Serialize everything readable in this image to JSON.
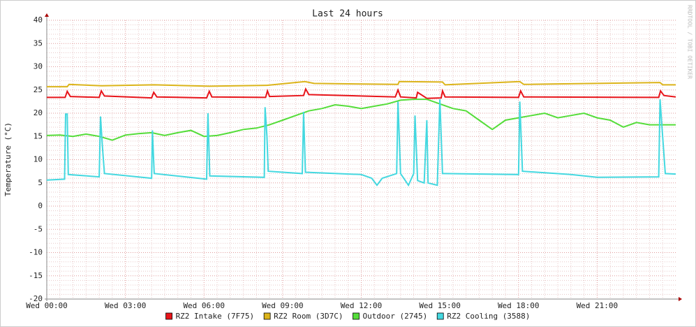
{
  "chart_data": {
    "type": "line",
    "title": "Last 24 hours",
    "y_label": "Temperature (°C)",
    "watermark": "RRDTOOL / TOBI OETIKER",
    "xlim": [
      0,
      24
    ],
    "xticks": [
      {
        "value": 0,
        "label": "Wed 00:00"
      },
      {
        "value": 3,
        "label": "Wed 03:00"
      },
      {
        "value": 6,
        "label": "Wed 06:00"
      },
      {
        "value": 9,
        "label": "Wed 09:00"
      },
      {
        "value": 12,
        "label": "Wed 12:00"
      },
      {
        "value": 15,
        "label": "Wed 15:00"
      },
      {
        "value": 18,
        "label": "Wed 18:00"
      },
      {
        "value": 21,
        "label": "Wed 21:00"
      }
    ],
    "ylim": [
      -20,
      40
    ],
    "yticks": [
      -20,
      -15,
      -10,
      -5,
      0,
      5,
      10,
      15,
      20,
      25,
      30,
      35,
      40
    ],
    "grid": true,
    "legend": "bottom",
    "series": [
      {
        "name": "RZ2 Intake (7F75)",
        "color": "#e8141a",
        "x": [
          0,
          0.7,
          0.78,
          0.9,
          2.0,
          2.08,
          2.2,
          4.0,
          4.08,
          4.2,
          6.1,
          6.2,
          6.3,
          8.35,
          8.42,
          8.5,
          9.8,
          9.88,
          10.0,
          13.3,
          13.4,
          13.5,
          14.1,
          14.15,
          14.5,
          15.05,
          15.1,
          15.2,
          18.0,
          18.08,
          18.2,
          23.35,
          23.42,
          23.55,
          24
        ],
        "values": [
          23.4,
          23.4,
          24.7,
          23.6,
          23.4,
          24.8,
          23.7,
          23.3,
          24.5,
          23.5,
          23.3,
          24.7,
          23.5,
          23.4,
          24.8,
          23.6,
          23.8,
          25.2,
          24.0,
          23.5,
          25,
          23.5,
          23.3,
          24.5,
          23.2,
          23.3,
          24.8,
          23.5,
          23.4,
          24.8,
          23.5,
          23.4,
          24.8,
          23.8,
          23.5
        ]
      },
      {
        "name": "RZ2 Room (3D7C)",
        "color": "#dcb41a",
        "x": [
          0,
          0.78,
          0.85,
          2.1,
          4.1,
          6.2,
          8.4,
          9.85,
          10.2,
          13.4,
          13.45,
          15.1,
          15.2,
          18.05,
          18.2,
          23.4,
          23.5,
          24
        ],
        "values": [
          25.7,
          25.7,
          26.2,
          25.9,
          26.1,
          25.8,
          26.0,
          26.8,
          26.4,
          26.2,
          26.8,
          26.7,
          26.1,
          26.8,
          26.2,
          26.6,
          26.1,
          26.1
        ]
      },
      {
        "name": "Outdoor (2745)",
        "color": "#55dd3a",
        "x": [
          0,
          0.5,
          1,
          1.5,
          2,
          2.5,
          3,
          3.5,
          4,
          4.5,
          5,
          5.5,
          6,
          6.5,
          7,
          7.5,
          8,
          8.5,
          9,
          9.5,
          10,
          10.5,
          11,
          11.5,
          12,
          12.5,
          13,
          13.5,
          14,
          14.5,
          15,
          15.5,
          16,
          16.5,
          17,
          17.5,
          18,
          18.5,
          19,
          19.5,
          20,
          20.5,
          21,
          21.5,
          22,
          22.5,
          23,
          23.5,
          24
        ],
        "values": [
          15.2,
          15.3,
          15.0,
          15.5,
          15.0,
          14.2,
          15.3,
          15.6,
          15.8,
          15.2,
          15.8,
          16.3,
          15.0,
          15.2,
          15.8,
          16.5,
          16.8,
          17.5,
          18.5,
          19.5,
          20.5,
          21.0,
          21.8,
          21.5,
          21.0,
          21.5,
          22.0,
          22.8,
          23.0,
          23.0,
          22.0,
          21.0,
          20.5,
          18.5,
          16.5,
          18.5,
          19.0,
          19.5,
          20.0,
          19.0,
          19.5,
          20.0,
          19.0,
          18.5,
          17.0,
          18.0,
          17.5,
          17.5,
          17.5
        ]
      },
      {
        "name": "RZ2 Cooling (3588)",
        "color": "#44d8e0",
        "x": [
          0,
          0.68,
          0.72,
          0.78,
          0.82,
          2.0,
          2.05,
          2.12,
          2.2,
          4.0,
          4.03,
          4.1,
          6.1,
          6.15,
          6.22,
          8.3,
          8.33,
          8.4,
          8.45,
          9.75,
          9.8,
          9.87,
          12.0,
          12.4,
          12.6,
          12.8,
          13.35,
          13.4,
          13.5,
          13.8,
          14.0,
          14.05,
          14.15,
          14.4,
          14.5,
          14.55,
          14.9,
          15.0,
          15.1,
          18.0,
          18.05,
          18.15,
          20.0,
          21.0,
          23.35,
          23.4,
          23.5,
          23.6,
          24
        ],
        "values": [
          5.6,
          5.8,
          19.8,
          19.8,
          6.8,
          6.3,
          19.3,
          13,
          7.0,
          6.0,
          16.3,
          7,
          5.8,
          20,
          6.5,
          6.2,
          21.3,
          15,
          7.5,
          7.0,
          20.3,
          7.3,
          6.8,
          6.0,
          4.5,
          6.0,
          7.0,
          22.5,
          7.0,
          4.5,
          7,
          19.5,
          5.5,
          5.0,
          18.5,
          5.0,
          4.5,
          23,
          7.0,
          6.8,
          22.5,
          7.5,
          6.8,
          6.2,
          6.3,
          23,
          15,
          7.0,
          6.9
        ]
      }
    ]
  }
}
